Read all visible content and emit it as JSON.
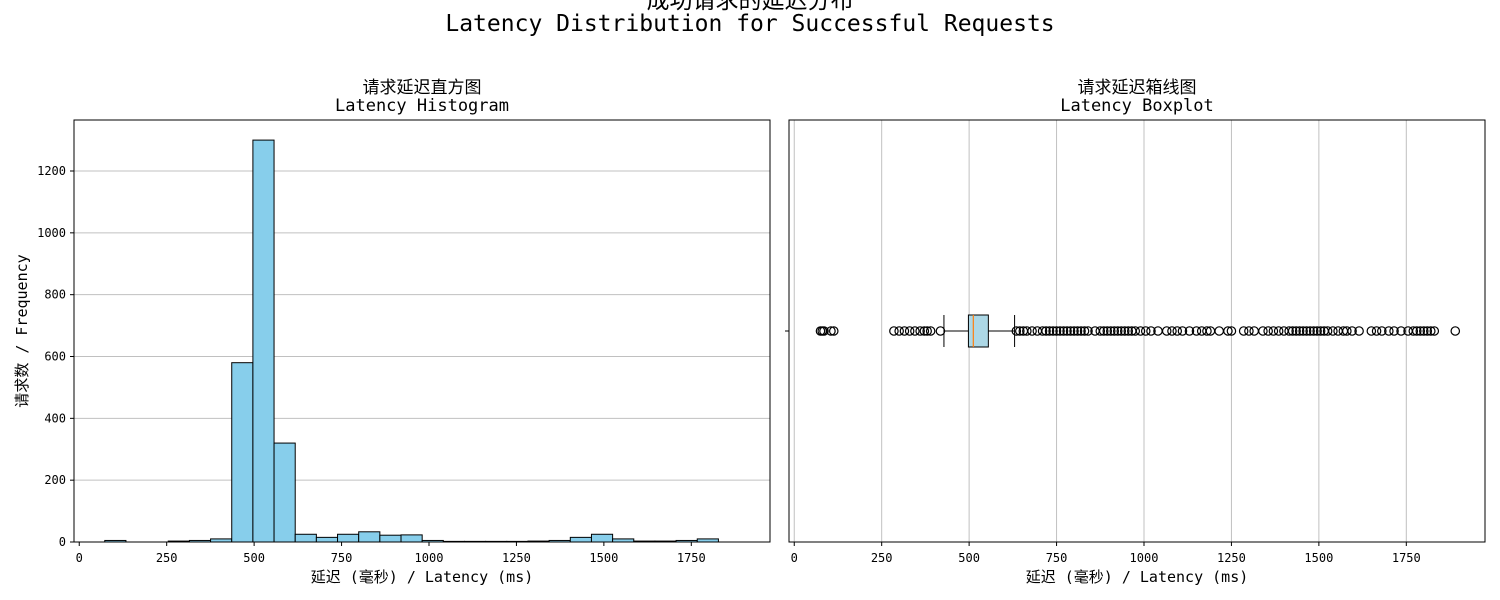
{
  "figure": {
    "title_zh": "成功请求的延迟分布",
    "title_en": "Latency Distribution for Successful Requests"
  },
  "colors": {
    "bar_fill": "#87ceeb",
    "box_fill": "#add8e6",
    "median_line": "#ff7f0e",
    "grid": "#c0c0c0"
  },
  "chart_data": [
    {
      "type": "bar",
      "title_zh": "请求延迟直方图",
      "title_en": "Latency Histogram",
      "xlabel": "延迟 (毫秒) / Latency (ms)",
      "ylabel": "请求数 / Frequency",
      "xlim": [
        -15,
        1975
      ],
      "ylim": [
        0,
        1365
      ],
      "xticks": [
        0,
        250,
        500,
        750,
        1000,
        1250,
        1500,
        1750
      ],
      "yticks": [
        0,
        200,
        400,
        600,
        800,
        1000,
        1200
      ],
      "grid": "y",
      "bin_width": 60.5,
      "bin_edges_start": 73,
      "values": [
        5,
        0,
        0,
        3,
        5,
        10,
        580,
        1300,
        320,
        25,
        15,
        25,
        33,
        22,
        23,
        5,
        2,
        2,
        2,
        2,
        3,
        5,
        15,
        25,
        10,
        3,
        3,
        5,
        10
      ]
    },
    {
      "type": "box",
      "title_zh": "请求延迟箱线图",
      "title_en": "Latency Boxplot",
      "xlabel": "延迟 (毫秒) / Latency (ms)",
      "xlim": [
        -15,
        1975
      ],
      "xticks": [
        0,
        250,
        500,
        750,
        1000,
        1250,
        1500,
        1750
      ],
      "grid": "x",
      "q1": 498,
      "median": 512,
      "q3": 555,
      "whisker_low": 428,
      "whisker_high": 630,
      "outliers": [
        75,
        80,
        85,
        105,
        113,
        285,
        300,
        315,
        330,
        345,
        360,
        372,
        380,
        390,
        418,
        635,
        645,
        655,
        665,
        680,
        695,
        710,
        720,
        730,
        740,
        750,
        760,
        770,
        780,
        790,
        800,
        810,
        820,
        830,
        840,
        860,
        875,
        885,
        895,
        905,
        915,
        925,
        935,
        945,
        955,
        965,
        975,
        990,
        1005,
        1020,
        1040,
        1065,
        1080,
        1095,
        1110,
        1130,
        1150,
        1165,
        1180,
        1190,
        1215,
        1240,
        1250,
        1285,
        1300,
        1315,
        1340,
        1355,
        1370,
        1385,
        1400,
        1415,
        1425,
        1435,
        1445,
        1455,
        1465,
        1475,
        1485,
        1495,
        1505,
        1515,
        1525,
        1540,
        1555,
        1570,
        1580,
        1595,
        1615,
        1650,
        1665,
        1680,
        1700,
        1715,
        1735,
        1755,
        1770,
        1780,
        1790,
        1800,
        1810,
        1820,
        1830,
        1890
      ]
    }
  ]
}
